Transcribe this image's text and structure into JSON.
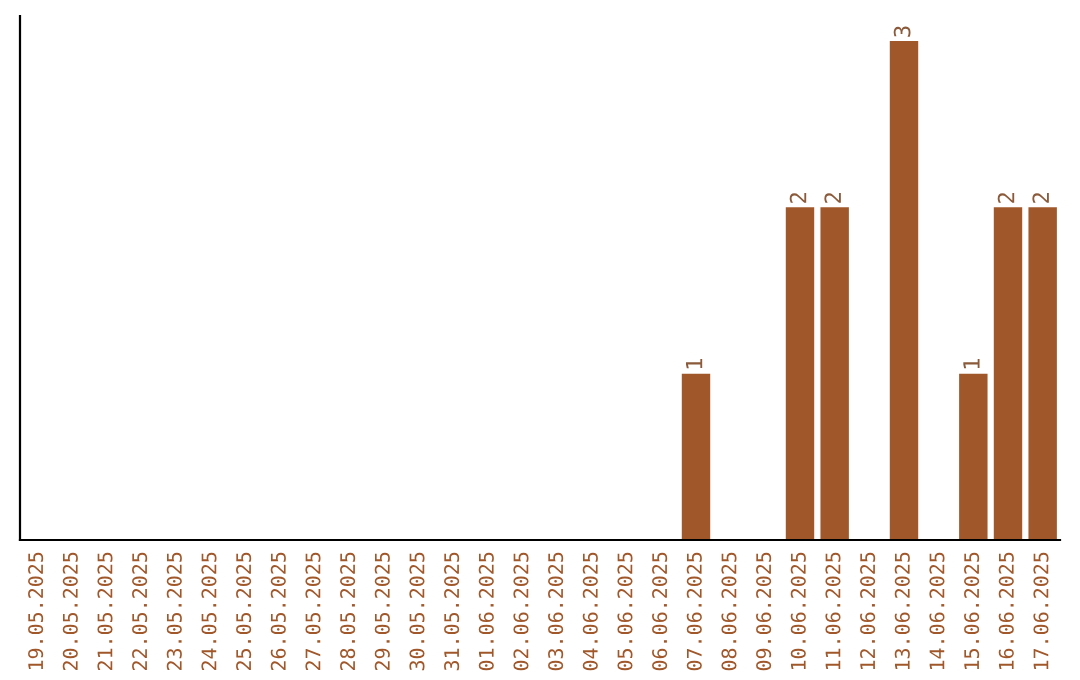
{
  "chart_data": {
    "type": "bar",
    "categories": [
      "19.05.2025",
      "20.05.2025",
      "21.05.2025",
      "22.05.2025",
      "23.05.2025",
      "24.05.2025",
      "25.05.2025",
      "26.05.2025",
      "27.05.2025",
      "28.05.2025",
      "29.05.2025",
      "30.05.2025",
      "31.05.2025",
      "01.06.2025",
      "02.06.2025",
      "03.06.2025",
      "04.06.2025",
      "05.06.2025",
      "06.06.2025",
      "07.06.2025",
      "08.06.2025",
      "09.06.2025",
      "10.06.2025",
      "11.06.2025",
      "12.06.2025",
      "13.06.2025",
      "14.06.2025",
      "15.06.2025",
      "16.06.2025",
      "17.06.2025"
    ],
    "values": [
      null,
      null,
      null,
      null,
      null,
      null,
      null,
      null,
      null,
      null,
      null,
      null,
      null,
      null,
      null,
      null,
      null,
      null,
      null,
      1,
      null,
      null,
      2,
      2,
      null,
      3,
      null,
      1,
      2,
      2
    ],
    "value_labels": [
      null,
      null,
      null,
      null,
      null,
      null,
      null,
      null,
      null,
      null,
      null,
      null,
      null,
      null,
      null,
      null,
      null,
      null,
      null,
      "1",
      null,
      null,
      "2",
      "2",
      null,
      "3",
      null,
      "1",
      "2",
      "2"
    ],
    "color": "#a0572a",
    "grid": false,
    "legend": false
  }
}
